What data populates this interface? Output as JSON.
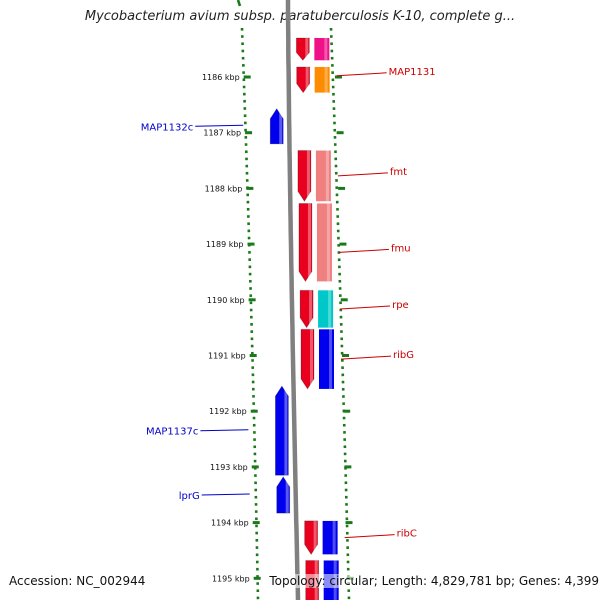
{
  "title": "Mycobacterium avium subsp. paratuberculosis K-10, complete g...",
  "accession": "Accession: NC_002944",
  "summary": "Topology: circular; Length: 4,829,781 bp; Genes: 4,399",
  "colors": {
    "forward_label": "#cc0000",
    "reverse_label": "#0000cc",
    "backbone": "#808080",
    "dots": "#1a7a1a"
  },
  "scale": [
    {
      "label": "1186 kbp",
      "kbp": 1186
    },
    {
      "label": "1187 kbp",
      "kbp": 1187
    },
    {
      "label": "1188 kbp",
      "kbp": 1188
    },
    {
      "label": "1189 kbp",
      "kbp": 1189
    },
    {
      "label": "1190 kbp",
      "kbp": 1190
    },
    {
      "label": "1191 kbp",
      "kbp": 1191
    },
    {
      "label": "1192 kbp",
      "kbp": 1192
    },
    {
      "label": "1193 kbp",
      "kbp": 1193
    },
    {
      "label": "1194 kbp",
      "kbp": 1194
    },
    {
      "label": "1195 kbp",
      "kbp": 1195
    }
  ],
  "genes": [
    {
      "label": "",
      "strand": "+",
      "start_kbp": 1185.3,
      "end_kbp": 1185.7,
      "fill": "#e8001e",
      "cog_fill": "#ee1188"
    },
    {
      "label": "MAP1131",
      "strand": "+",
      "start_kbp": 1185.82,
      "end_kbp": 1186.28,
      "fill": "#e8001e",
      "cog_fill": "#ff8c00"
    },
    {
      "label": "MAP1132c",
      "strand": "-",
      "start_kbp": 1186.57,
      "end_kbp": 1187.2,
      "fill": "#0000ee",
      "cog_fill": ""
    },
    {
      "label": "fmt",
      "strand": "+",
      "start_kbp": 1187.32,
      "end_kbp": 1188.23,
      "fill": "#e8001e",
      "cog_fill": "#f08080"
    },
    {
      "label": "fmu",
      "strand": "+",
      "start_kbp": 1188.27,
      "end_kbp": 1189.67,
      "fill": "#e8001e",
      "cog_fill": "#f08080"
    },
    {
      "label": "rpe",
      "strand": "+",
      "start_kbp": 1189.83,
      "end_kbp": 1190.5,
      "fill": "#e8001e",
      "cog_fill": "#00c8c8"
    },
    {
      "label": "ribG",
      "strand": "+",
      "start_kbp": 1190.53,
      "end_kbp": 1191.6,
      "fill": "#e8001e",
      "cog_fill": "#0000ee"
    },
    {
      "label": "MAP1137c",
      "strand": "-",
      "start_kbp": 1191.55,
      "end_kbp": 1193.15,
      "fill": "#0000ee",
      "cog_fill": ""
    },
    {
      "label": "lprG",
      "strand": "-",
      "start_kbp": 1193.18,
      "end_kbp": 1193.83,
      "fill": "#0000ee",
      "cog_fill": ""
    },
    {
      "label": "ribC",
      "strand": "+",
      "start_kbp": 1193.97,
      "end_kbp": 1194.57,
      "fill": "#e8001e",
      "cog_fill": "#0000ee"
    },
    {
      "label": "",
      "strand": "+",
      "start_kbp": 1194.68,
      "end_kbp": 1195.6,
      "fill": "#e8001e",
      "cog_fill": "#0000ee"
    }
  ]
}
